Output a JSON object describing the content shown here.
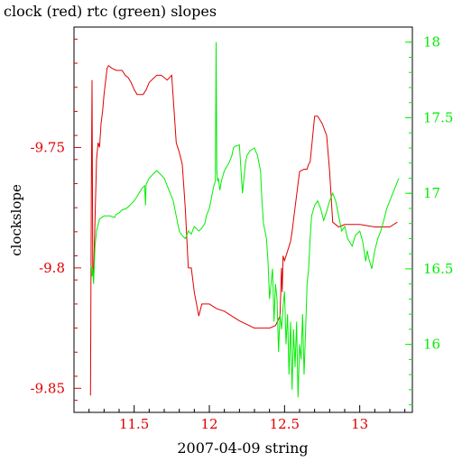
{
  "chart_data": {
    "type": "line",
    "title": "clock (red) rtc (green) slopes",
    "xlabel": "2007-04-09 string",
    "ylabel": "clockslope",
    "xlim": [
      11.1,
      13.35
    ],
    "ylim_left": [
      -9.86,
      -9.7
    ],
    "ylim_right": [
      15.55,
      18.1
    ],
    "x_ticks": [
      "11.5",
      "12",
      "12.5",
      "13"
    ],
    "x_tick_values": [
      11.5,
      12.0,
      12.5,
      13.0
    ],
    "y_left_ticks": [
      "-9.75",
      "-9.8",
      "-9.85"
    ],
    "y_left_tick_values": [
      -9.75,
      -9.8,
      -9.85
    ],
    "y_right_ticks": [
      "18",
      "17.5",
      "17",
      "16.5",
      "16"
    ],
    "y_right_tick_values": [
      18,
      17.5,
      17,
      16.5,
      16
    ],
    "colors": {
      "clock": "#e00000",
      "rtc": "#00ee00",
      "axis": "#000000"
    },
    "series": [
      {
        "axis": "left",
        "color": "#e00000",
        "x": [
          11.21,
          11.215,
          11.22,
          11.225,
          11.23,
          11.24,
          11.25,
          11.26,
          11.27,
          11.28,
          11.29,
          11.3,
          11.32,
          11.33,
          11.35,
          11.38,
          11.42,
          11.44,
          11.46,
          11.48,
          11.5,
          11.52,
          11.56,
          11.58,
          11.6,
          11.65,
          11.68,
          11.7,
          11.72,
          11.75,
          11.78,
          11.8,
          11.82,
          11.84,
          11.86,
          11.88,
          11.9,
          11.93,
          11.95,
          12.0,
          12.05,
          12.1,
          12.15,
          12.2,
          12.3,
          12.4,
          12.44,
          12.47,
          12.48,
          12.485,
          12.49,
          12.5,
          12.52,
          12.54,
          12.55,
          12.56,
          12.6,
          12.63,
          12.65,
          12.66,
          12.67,
          12.68,
          12.7,
          12.72,
          12.75,
          12.78,
          12.8,
          12.82,
          12.86,
          12.9,
          13.0,
          13.1,
          13.2,
          13.25
        ],
        "y": [
          -9.853,
          -9.77,
          -9.722,
          -9.8,
          -9.803,
          -9.78,
          -9.755,
          -9.748,
          -9.75,
          -9.74,
          -9.735,
          -9.728,
          -9.717,
          -9.716,
          -9.717,
          -9.718,
          -9.718,
          -9.72,
          -9.721,
          -9.723,
          -9.726,
          -9.728,
          -9.728,
          -9.726,
          -9.723,
          -9.72,
          -9.72,
          -9.721,
          -9.722,
          -9.72,
          -9.748,
          -9.752,
          -9.757,
          -9.775,
          -9.8,
          -9.8,
          -9.81,
          -9.82,
          -9.815,
          -9.815,
          -9.817,
          -9.818,
          -9.82,
          -9.822,
          -9.825,
          -9.825,
          -9.824,
          -9.82,
          -9.8,
          -9.81,
          -9.795,
          -9.797,
          -9.793,
          -9.789,
          -9.785,
          -9.78,
          -9.76,
          -9.759,
          -9.759,
          -9.757,
          -9.756,
          -9.75,
          -9.737,
          -9.737,
          -9.74,
          -9.745,
          -9.76,
          -9.781,
          -9.783,
          -9.782,
          -9.782,
          -9.783,
          -9.783,
          -9.781
        ]
      },
      {
        "axis": "right",
        "color": "#00ee00",
        "x": [
          11.21,
          11.215,
          11.22,
          11.225,
          11.23,
          11.24,
          11.25,
          11.27,
          11.3,
          11.34,
          11.37,
          11.38,
          11.4,
          11.42,
          11.45,
          11.47,
          11.5,
          11.52,
          11.55,
          11.57,
          11.575,
          11.58,
          11.6,
          11.63,
          11.65,
          11.68,
          11.7,
          11.72,
          11.74,
          11.76,
          11.78,
          11.8,
          11.82,
          11.84,
          11.85,
          11.86,
          11.88,
          11.9,
          11.93,
          11.95,
          11.97,
          11.98,
          12.0,
          12.01,
          12.02,
          12.03,
          12.04,
          12.045,
          12.05,
          12.055,
          12.06,
          12.07,
          12.08,
          12.1,
          12.13,
          12.15,
          12.16,
          12.17,
          12.2,
          12.22,
          12.24,
          12.25,
          12.27,
          12.3,
          12.32,
          12.34,
          12.35,
          12.36,
          12.38,
          12.39,
          12.4,
          12.42,
          12.43,
          12.44,
          12.45,
          12.46,
          12.47,
          12.48,
          12.49,
          12.5,
          12.51,
          12.52,
          12.53,
          12.54,
          12.55,
          12.56,
          12.57,
          12.58,
          12.59,
          12.6,
          12.61,
          12.62,
          12.63,
          12.64,
          12.65,
          12.66,
          12.67,
          12.68,
          12.7,
          12.72,
          12.74,
          12.76,
          12.78,
          12.8,
          12.82,
          12.84,
          12.86,
          12.88,
          12.9,
          12.92,
          12.95,
          12.97,
          13.0,
          13.02,
          13.04,
          13.05,
          13.06,
          13.08,
          13.1,
          13.12,
          13.14,
          13.16,
          13.18,
          13.2,
          13.22,
          13.24,
          13.26
        ],
        "y": [
          16.5,
          16.52,
          16.45,
          16.5,
          16.4,
          16.65,
          16.75,
          16.83,
          16.85,
          16.85,
          16.84,
          16.86,
          16.87,
          16.89,
          16.9,
          16.92,
          16.95,
          16.98,
          17.03,
          17.05,
          16.92,
          17.06,
          17.1,
          17.13,
          17.15,
          17.12,
          17.1,
          17.05,
          17.0,
          16.95,
          16.85,
          16.75,
          16.72,
          16.7,
          16.72,
          16.75,
          16.73,
          16.78,
          16.75,
          16.77,
          16.8,
          16.85,
          16.9,
          16.95,
          17.0,
          17.05,
          17.08,
          18.0,
          17.15,
          17.08,
          17.1,
          17.02,
          17.08,
          17.15,
          17.2,
          17.25,
          17.3,
          17.31,
          17.32,
          17.0,
          17.2,
          17.25,
          17.28,
          17.3,
          17.25,
          17.15,
          16.95,
          16.8,
          16.7,
          16.55,
          16.3,
          16.5,
          16.15,
          16.4,
          16.3,
          15.95,
          16.2,
          16.1,
          16.25,
          16.35,
          16.0,
          16.2,
          15.8,
          16.15,
          15.7,
          16.1,
          15.85,
          16.15,
          15.65,
          16.0,
          15.9,
          16.2,
          15.8,
          16.1,
          16.4,
          16.5,
          16.7,
          16.85,
          16.92,
          16.95,
          16.9,
          16.82,
          16.88,
          16.95,
          17.0,
          16.95,
          16.85,
          16.75,
          16.78,
          16.7,
          16.65,
          16.72,
          16.75,
          16.68,
          16.55,
          16.62,
          16.57,
          16.5,
          16.62,
          16.7,
          16.75,
          16.82,
          16.9,
          16.95,
          17.0,
          17.05,
          17.1
        ]
      }
    ]
  }
}
